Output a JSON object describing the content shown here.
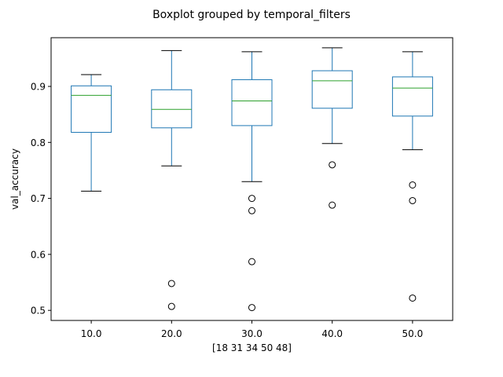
{
  "chart_data": {
    "type": "box",
    "title": "Boxplot grouped by temporal_filters",
    "xlabel": "[18 31 34 50 48]",
    "ylabel": "val_accuracy",
    "ylim": [
      0.482,
      0.987
    ],
    "yticks": [
      "0.5",
      "0.6",
      "0.7",
      "0.8",
      "0.9"
    ],
    "ytick_values": [
      0.5,
      0.6,
      0.7,
      0.8,
      0.9
    ],
    "grid": false,
    "box_color": "#1f77b4",
    "median_color": "#2ca02c",
    "groups": [
      {
        "label": "10.0",
        "whislo": 0.713,
        "q1": 0.818,
        "median": 0.884,
        "q3": 0.901,
        "whishi": 0.921,
        "fliers": []
      },
      {
        "label": "20.0",
        "whislo": 0.758,
        "q1": 0.826,
        "median": 0.859,
        "q3": 0.894,
        "whishi": 0.964,
        "fliers": [
          0.548,
          0.507
        ]
      },
      {
        "label": "30.0",
        "whislo": 0.73,
        "q1": 0.83,
        "median": 0.874,
        "q3": 0.912,
        "whishi": 0.962,
        "fliers": [
          0.7,
          0.678,
          0.587,
          0.505
        ]
      },
      {
        "label": "40.0",
        "whislo": 0.798,
        "q1": 0.861,
        "median": 0.91,
        "q3": 0.928,
        "whishi": 0.969,
        "fliers": [
          0.76,
          0.688
        ]
      },
      {
        "label": "50.0",
        "whislo": 0.787,
        "q1": 0.847,
        "median": 0.897,
        "q3": 0.917,
        "whishi": 0.962,
        "fliers": [
          0.724,
          0.696,
          0.522
        ]
      }
    ]
  }
}
